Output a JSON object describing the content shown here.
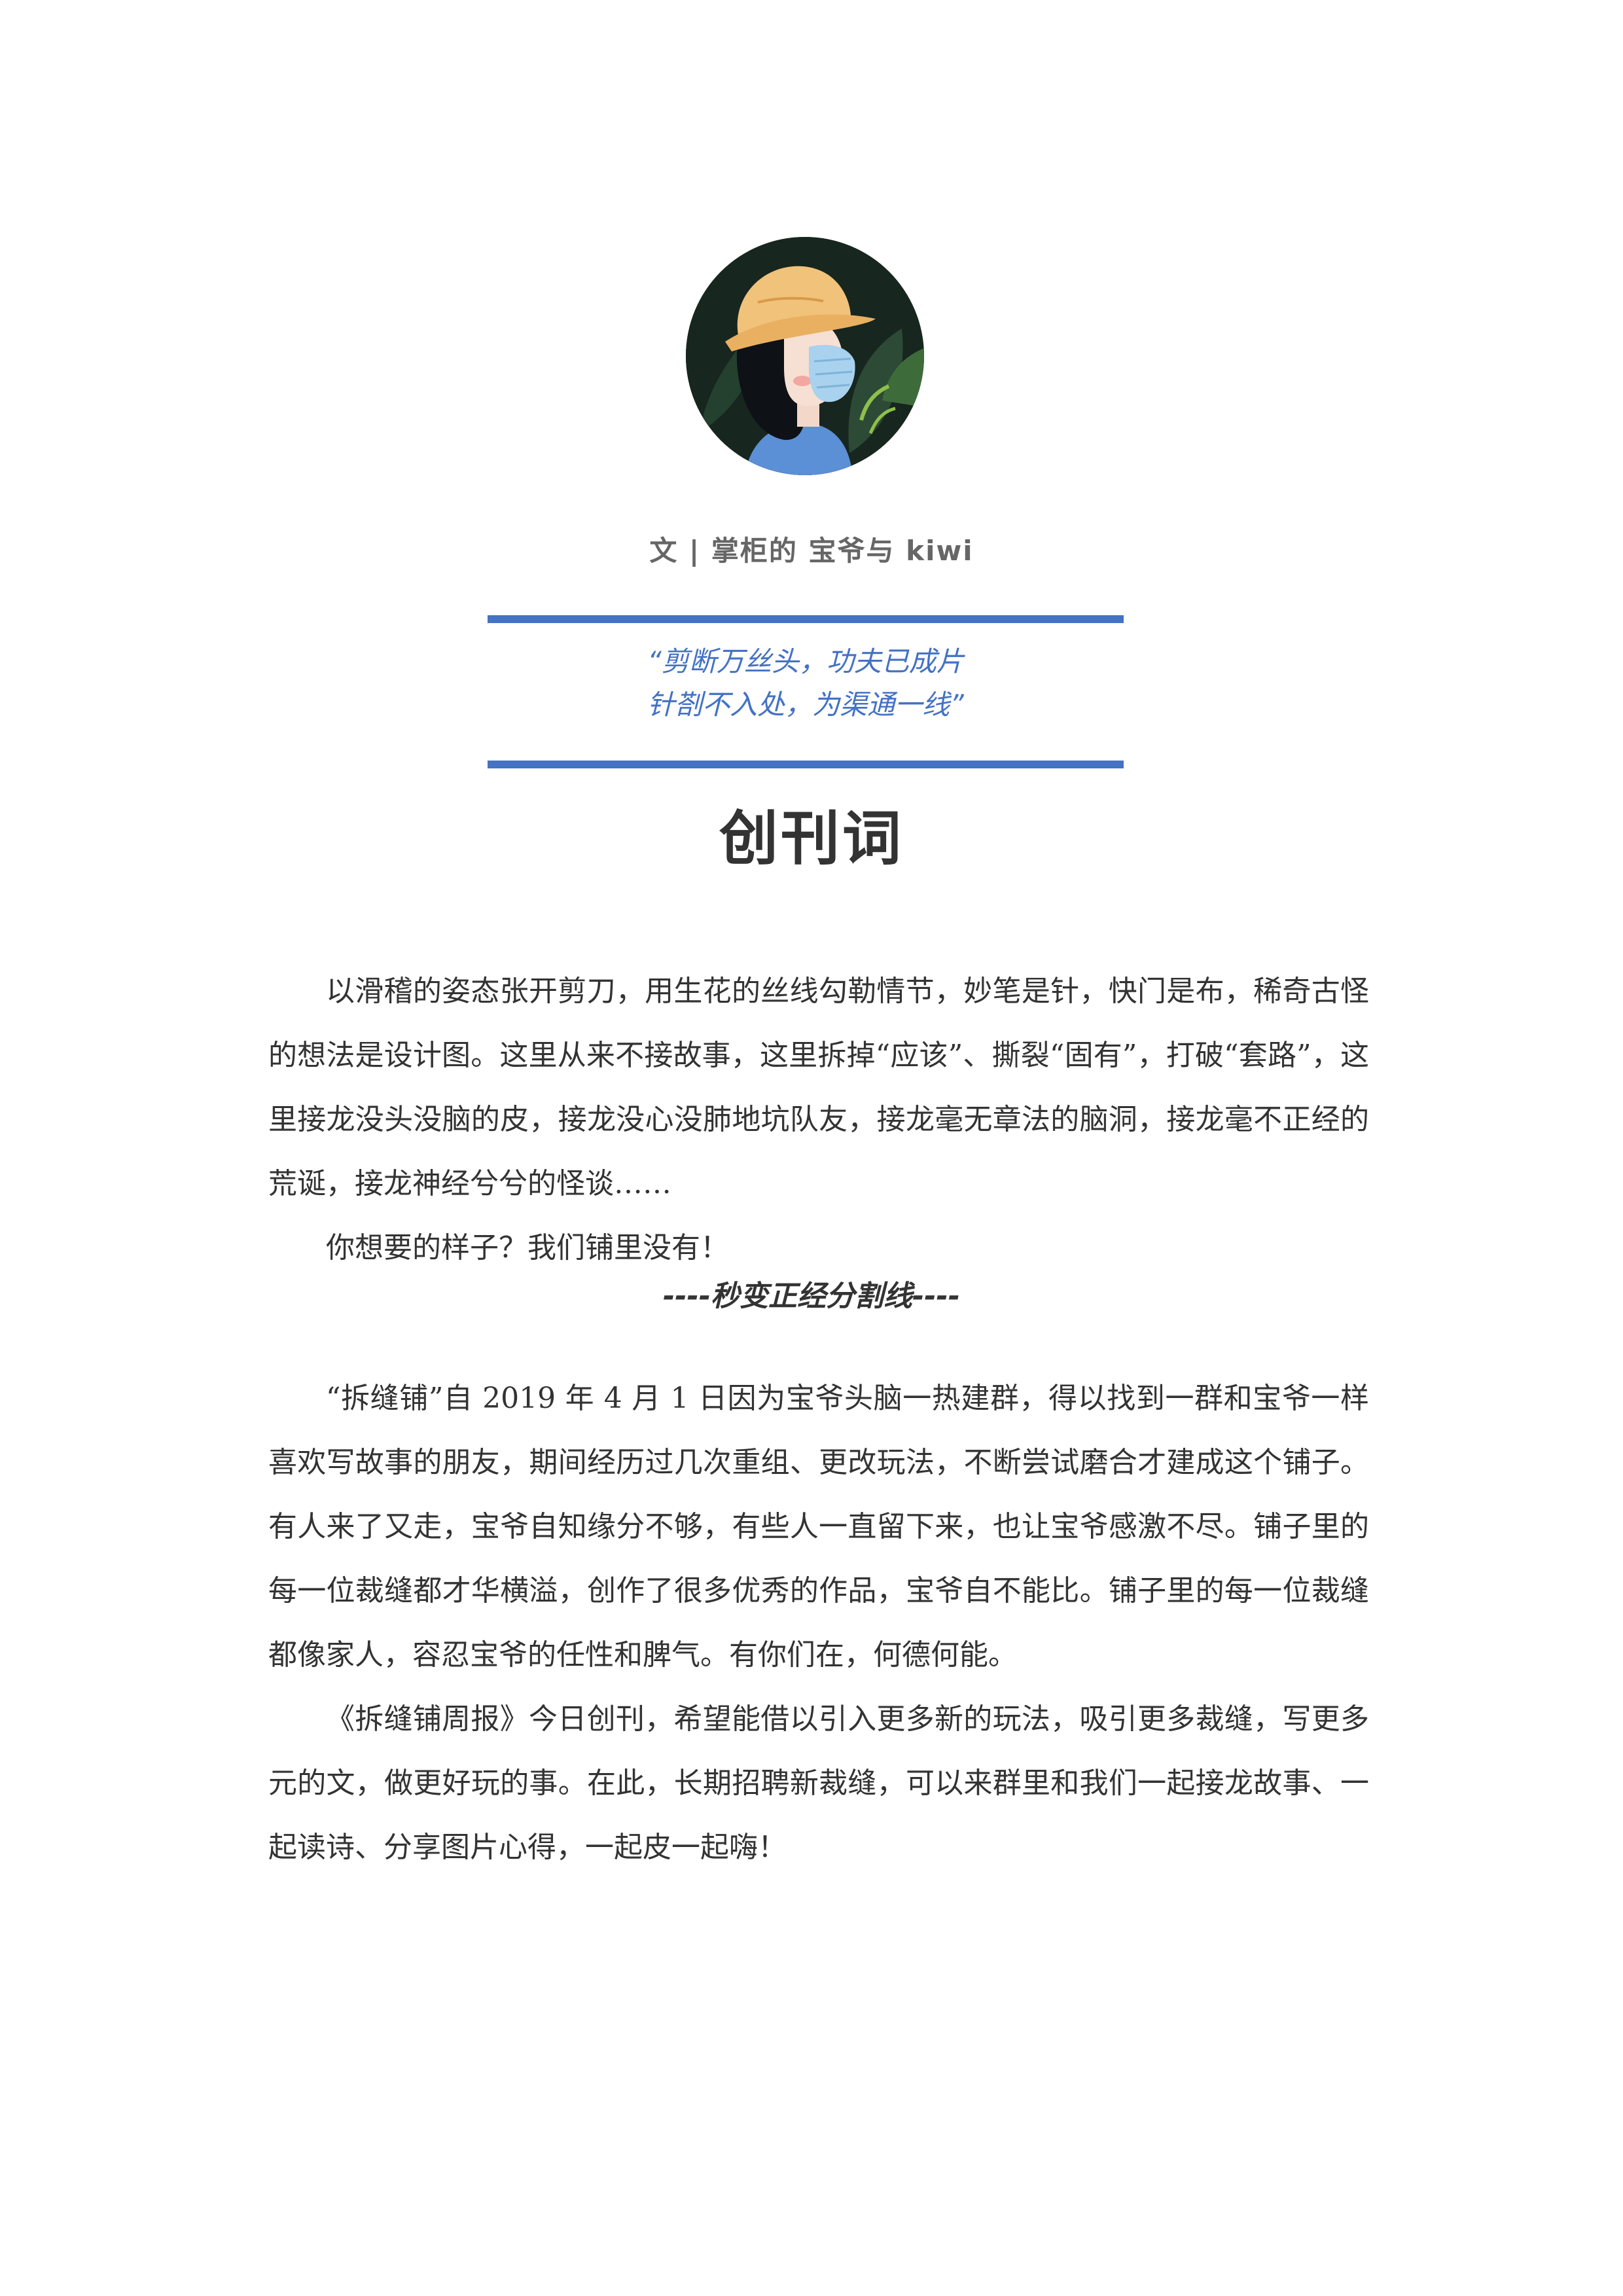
{
  "byline": "文 | 掌柜的 宝爷与 kiwi",
  "quote": {
    "line1": "“剪断万丝头，功夫已成片",
    "line2": "针剳不入处，为渠通一线”"
  },
  "title": "创刊词",
  "section1": {
    "paragraphs": [
      "以滑稽的姿态张开剪刀，用生花的丝线勾勒情节，妙笔是针，快门是布，稀奇古怪的想法是设计图。这里从来不接故事，这里拆掉“应该”、撕裂“固有”，打破“套路”，这里接龙没头没脑的皮，接龙没心没肺地坑队友，接龙毫无章法的脑洞，接龙毫不正经的荒诞，接龙神经兮兮的怪谈……",
      "你想要的样子？我们铺里没有！"
    ]
  },
  "divider": "----秒变正经分割线----",
  "section2": {
    "paragraphs": [
      "“拆缝铺”自 2019 年 4 月 1 日因为宝爷头脑一热建群，得以找到一群和宝爷一样喜欢写故事的朋友，期间经历过几次重组、更改玩法，不断尝试磨合才建成这个铺子。有人来了又走，宝爷自知缘分不够，有些人一直留下来，也让宝爷感激不尽。铺子里的每一位裁缝都才华横溢，创作了很多优秀的作品，宝爷自不能比。铺子里的每一位裁缝都像家人，容忍宝爷的任性和脾气。有你们在，何德何能。",
      "《拆缝铺周报》今日创刊，希望能借以引入更多新的玩法，吸引更多裁缝，写更多元的文，做更好玩的事。在此，长期招聘新裁缝，可以来群里和我们一起接龙故事、一起读诗、分享图片心得，一起皮一起嗨！"
    ]
  },
  "colors": {
    "accent": "#4472c4",
    "text": "#333333",
    "byline": "#666666"
  }
}
